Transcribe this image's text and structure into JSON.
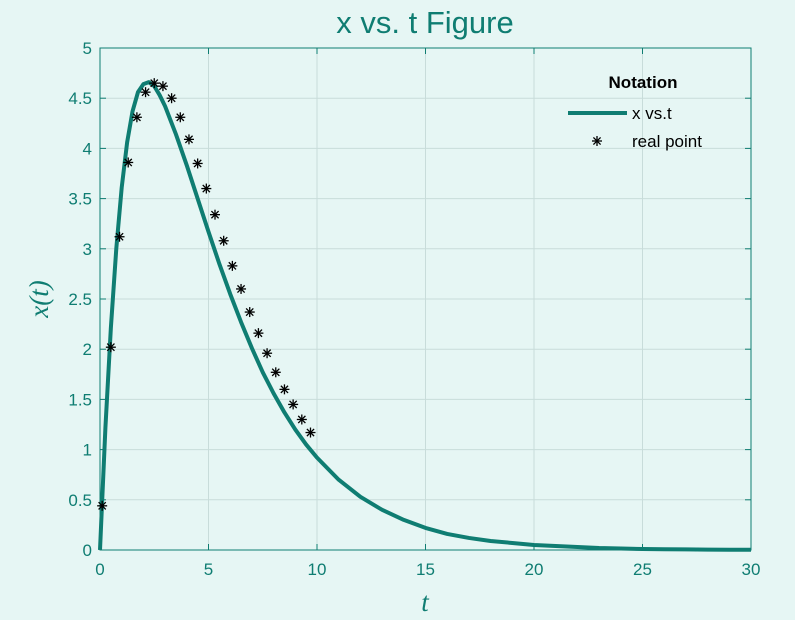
{
  "chart_data": {
    "type": "line",
    "title": "x vs. t Figure",
    "xlabel": "t",
    "ylabel": "x(t)",
    "xlim": [
      0,
      30
    ],
    "ylim": [
      0,
      5
    ],
    "xticks": [
      0,
      5,
      10,
      15,
      20,
      25,
      30
    ],
    "xtick_labels": [
      "0",
      "5",
      "10",
      "15",
      "20",
      "25",
      "30"
    ],
    "yticks": [
      0,
      0.5,
      1,
      1.5,
      2,
      2.5,
      3,
      3.5,
      4,
      4.5,
      5
    ],
    "ytick_labels": [
      "0",
      "0.5",
      "1",
      "1.5",
      "2",
      "2.5",
      "3",
      "3.5",
      "4",
      "4.5",
      "5"
    ],
    "grid": true,
    "legend": {
      "title": "Notation",
      "position": "top-right",
      "entries": [
        {
          "label": "x vs.t",
          "style": "line"
        },
        {
          "label": "real point",
          "style": "marker"
        }
      ]
    },
    "colors": {
      "line": "#0f7d72",
      "markers": "#000000",
      "background": "#e6f6f4",
      "grid": "#c8dcda",
      "text": "#0f7d72"
    },
    "series": [
      {
        "name": "x vs.t",
        "kind": "line",
        "x": [
          0,
          0.25,
          0.5,
          0.75,
          1,
          1.25,
          1.5,
          1.75,
          2,
          2.25,
          2.5,
          2.75,
          3,
          3.5,
          4,
          4.5,
          5,
          5.5,
          6,
          6.5,
          7,
          7.5,
          8,
          8.5,
          9,
          9.5,
          10,
          11,
          12,
          13,
          14,
          15,
          16,
          17,
          18,
          19,
          20,
          21,
          22,
          23,
          24,
          25,
          26,
          27,
          28,
          29,
          30
        ],
        "y": [
          0,
          1.22,
          2.21,
          3.0,
          3.61,
          4.06,
          4.37,
          4.56,
          4.64,
          4.66,
          4.62,
          4.53,
          4.42,
          4.14,
          3.83,
          3.5,
          3.17,
          2.85,
          2.55,
          2.27,
          2.01,
          1.77,
          1.56,
          1.37,
          1.2,
          1.05,
          0.92,
          0.7,
          0.53,
          0.4,
          0.3,
          0.22,
          0.16,
          0.12,
          0.09,
          0.07,
          0.05,
          0.04,
          0.03,
          0.02,
          0.015,
          0.01,
          0.008,
          0.006,
          0.004,
          0.003,
          0.002
        ]
      },
      {
        "name": "real point",
        "kind": "scatter",
        "x": [
          0.1,
          0.5,
          0.9,
          1.3,
          1.7,
          2.1,
          2.5,
          2.9,
          3.3,
          3.7,
          4.1,
          4.5,
          4.9,
          5.3,
          5.7,
          6.1,
          6.5,
          6.9,
          7.3,
          7.7,
          8.1,
          8.5,
          8.9,
          9.3,
          9.7
        ],
        "y": [
          0.44,
          2.02,
          3.12,
          3.86,
          4.31,
          4.56,
          4.65,
          4.62,
          4.5,
          4.31,
          4.09,
          3.85,
          3.6,
          3.34,
          3.08,
          2.83,
          2.6,
          2.37,
          2.16,
          1.96,
          1.77,
          1.6,
          1.45,
          1.3,
          1.17
        ]
      }
    ]
  }
}
